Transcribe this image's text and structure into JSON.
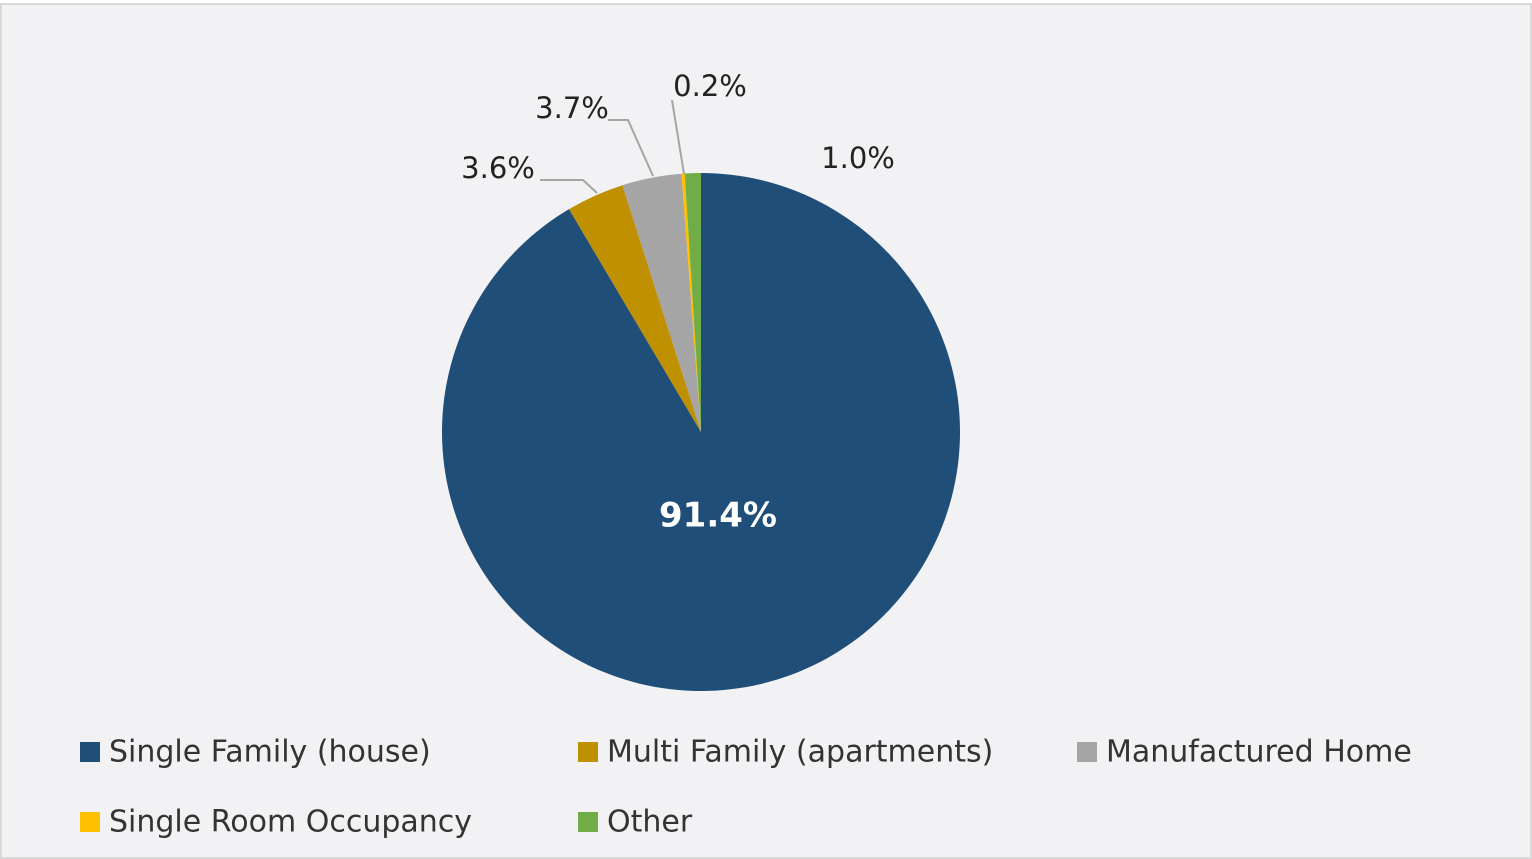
{
  "chart_data": {
    "type": "pie",
    "categories": [
      "Single Family (house)",
      "Multi Family (apartments)",
      "Manufactured Home",
      "Single Room Occupancy",
      "Other"
    ],
    "values": [
      91.4,
      3.6,
      3.7,
      0.2,
      1.0
    ],
    "value_labels": [
      "91.4%",
      "3.6%",
      "3.7%",
      "0.2%",
      "1.0%"
    ],
    "colors": [
      "#1f4e79",
      "#bf9000",
      "#a5a5a5",
      "#ffc000",
      "#70ad47"
    ],
    "legend": "bottom"
  }
}
